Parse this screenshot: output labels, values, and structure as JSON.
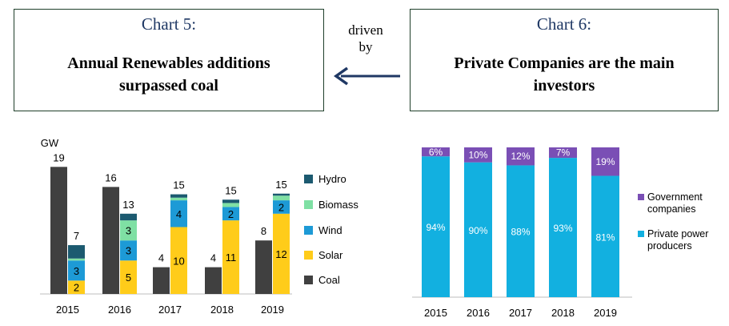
{
  "left_box": {
    "title": "Chart 5:",
    "headline_line1": "Annual Renewables additions",
    "headline_line2": "surpassed coal"
  },
  "right_box": {
    "title": "Chart 6:",
    "headline_line1": "Private Companies are the main",
    "headline_line2": "investors"
  },
  "connector": {
    "line1": "driven",
    "line2": "by"
  },
  "chart_data": [
    {
      "type": "bar",
      "unit_label": "GW",
      "stacked": true,
      "groups": [
        "2015",
        "2016",
        "2017",
        "2018",
        "2019"
      ],
      "legend": [
        "Hydro",
        "Biomass",
        "Wind",
        "Solar",
        "Coal"
      ],
      "colors": {
        "Coal": "#404040",
        "Solar": "#ffcc1a",
        "Wind": "#1d9ad6",
        "Biomass": "#7fe0a4",
        "Hydro": "#1c5a70"
      },
      "bars": [
        {
          "group": "2015",
          "total": "19",
          "segments": [
            {
              "series": "Coal",
              "value": 19,
              "label": "",
              "bold": false
            }
          ]
        },
        {
          "group": "2015",
          "total": "7",
          "segments": [
            {
              "series": "Solar",
              "value": 2,
              "label": "2",
              "bold": false
            },
            {
              "series": "Wind",
              "value": 3,
              "label": "3",
              "bold": false
            },
            {
              "series": "Biomass",
              "value": 0.3,
              "label": "",
              "bold": false
            },
            {
              "series": "Hydro",
              "value": 2,
              "label": "",
              "bold": false
            }
          ]
        },
        {
          "group": "2016",
          "total": "16",
          "segments": [
            {
              "series": "Coal",
              "value": 16,
              "label": "",
              "bold": false
            }
          ]
        },
        {
          "group": "2016",
          "total": "13",
          "segments": [
            {
              "series": "Solar",
              "value": 5,
              "label": "5",
              "bold": false
            },
            {
              "series": "Wind",
              "value": 3,
              "label": "3",
              "bold": false
            },
            {
              "series": "Biomass",
              "value": 3,
              "label": "3",
              "bold": false
            },
            {
              "series": "Hydro",
              "value": 1,
              "label": "",
              "bold": false
            }
          ]
        },
        {
          "group": "2017",
          "total": "",
          "segments": [
            {
              "series": "Coal",
              "value": 4,
              "label": "",
              "bold": false
            }
          ]
        },
        {
          "group": "2017",
          "total": "15",
          "segments": [
            {
              "series": "Solar",
              "value": 10,
              "label": "10",
              "bold": false
            },
            {
              "series": "Wind",
              "value": 4,
              "label": "4",
              "bold": false
            },
            {
              "series": "Biomass",
              "value": 0.4,
              "label": "",
              "bold": false
            },
            {
              "series": "Hydro",
              "value": 0.5,
              "label": "",
              "bold": false
            }
          ]
        },
        {
          "group": "2018",
          "total": "",
          "segments": [
            {
              "series": "Coal",
              "value": 4,
              "label": "",
              "bold": false
            }
          ]
        },
        {
          "group": "2018",
          "total": "15",
          "segments": [
            {
              "series": "Solar",
              "value": 11,
              "label": "11",
              "bold": false
            },
            {
              "series": "Wind",
              "value": 2,
              "label": "2",
              "bold": false
            },
            {
              "series": "Biomass",
              "value": 0.6,
              "label": "",
              "bold": false
            },
            {
              "series": "Hydro",
              "value": 0.5,
              "label": "",
              "bold": false
            }
          ]
        },
        {
          "group": "2019",
          "total": "",
          "segments": [
            {
              "series": "Coal",
              "value": 8,
              "label": "",
              "bold": false
            }
          ]
        },
        {
          "group": "2019",
          "total": "15",
          "segments": [
            {
              "series": "Solar",
              "value": 12,
              "label": "12",
              "bold": false
            },
            {
              "series": "Wind",
              "value": 2,
              "label": "2",
              "bold": false
            },
            {
              "series": "Biomass",
              "value": 0.7,
              "label": "",
              "bold": false
            },
            {
              "series": "Hydro",
              "value": 0.3,
              "label": "",
              "bold": false
            }
          ]
        }
      ],
      "coal_labels": [
        "4",
        "4",
        "8"
      ],
      "ylim": [
        0,
        20
      ]
    },
    {
      "type": "bar",
      "stacked": true,
      "percent": true,
      "categories": [
        "2015",
        "2016",
        "2017",
        "2018",
        "2019"
      ],
      "series": [
        {
          "name": "Private power producers",
          "values": [
            94,
            90,
            88,
            93,
            81
          ],
          "labels": [
            "94%",
            "90%",
            "88%",
            "93%",
            "81%"
          ],
          "color": "#12b0e0"
        },
        {
          "name": "Government companies",
          "values": [
            6,
            10,
            12,
            7,
            19
          ],
          "labels": [
            "6%",
            "10%",
            "12%",
            "7%",
            "19%"
          ],
          "color": "#7a4fb5"
        }
      ],
      "legend": [
        "Government companies",
        "Private power producers"
      ],
      "ylim": [
        0,
        100
      ]
    }
  ]
}
